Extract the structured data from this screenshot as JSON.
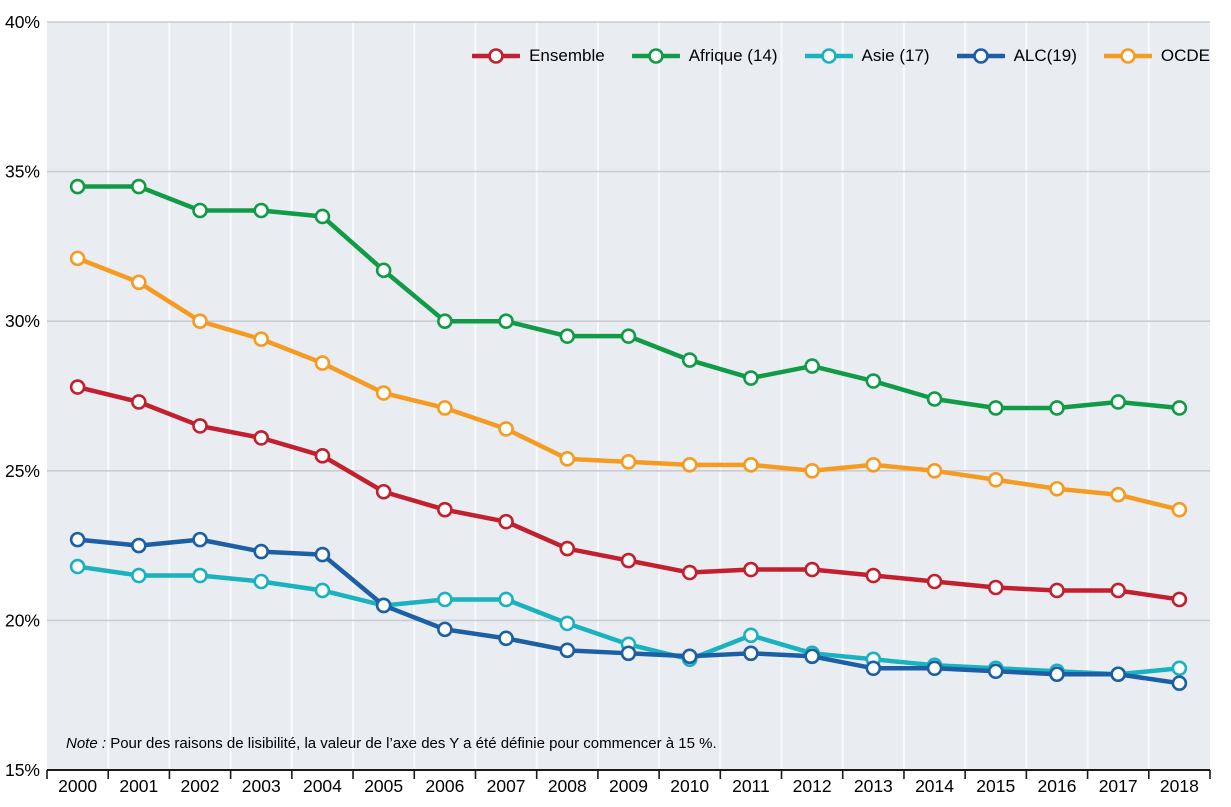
{
  "chart_data": {
    "type": "line",
    "title": "",
    "xlabel": "",
    "ylabel": "",
    "background_color": "#e9edf2",
    "grid_color": "#c9cdd1",
    "vertical_grid_color": "#f8fafb",
    "axis_color": "#1a1a1a",
    "text_color": "#000000",
    "ylim": [
      15,
      40
    ],
    "y_ticks": [
      {
        "value": 15,
        "label": "15%"
      },
      {
        "value": 20,
        "label": "20%"
      },
      {
        "value": 25,
        "label": "25%"
      },
      {
        "value": 30,
        "label": "30%"
      },
      {
        "value": 35,
        "label": "35%"
      },
      {
        "value": 40,
        "label": "40%"
      }
    ],
    "x": [
      2000,
      2001,
      2002,
      2003,
      2004,
      2005,
      2006,
      2007,
      2008,
      2009,
      2010,
      2011,
      2012,
      2013,
      2014,
      2015,
      2016,
      2017,
      2018
    ],
    "series": [
      {
        "name": "Ensemble",
        "color": "#c2202f",
        "values": [
          27.8,
          27.3,
          26.5,
          26.1,
          25.5,
          24.3,
          23.7,
          23.3,
          22.4,
          22.0,
          21.6,
          21.7,
          21.7,
          21.5,
          21.3,
          21.1,
          21.0,
          21.0,
          20.7
        ]
      },
      {
        "name": "Afrique (14)",
        "color": "#119b46",
        "values": [
          34.5,
          34.5,
          33.7,
          33.7,
          33.5,
          31.7,
          30.0,
          30.0,
          29.5,
          29.5,
          28.7,
          28.1,
          28.5,
          28.0,
          27.4,
          27.1,
          27.1,
          27.3,
          27.1
        ]
      },
      {
        "name": "Asie (17)",
        "color": "#1ab2be",
        "values": [
          21.8,
          21.5,
          21.5,
          21.3,
          21.0,
          20.5,
          20.7,
          20.7,
          19.9,
          19.2,
          18.7,
          19.5,
          18.9,
          18.7,
          18.5,
          18.4,
          18.3,
          18.2,
          18.4
        ]
      },
      {
        "name": "ALC(19)",
        "color": "#1c5fa5",
        "values": [
          22.7,
          22.5,
          22.7,
          22.3,
          22.2,
          20.5,
          19.7,
          19.4,
          19.0,
          18.9,
          18.8,
          18.9,
          18.8,
          18.4,
          18.4,
          18.3,
          18.2,
          18.2,
          17.9
        ]
      },
      {
        "name": "OCDE",
        "color": "#f59b22",
        "values": [
          32.1,
          31.3,
          30.0,
          29.4,
          28.6,
          27.6,
          27.1,
          26.4,
          25.4,
          25.3,
          25.2,
          25.2,
          25.0,
          25.2,
          25.0,
          24.7,
          24.4,
          24.2,
          23.7
        ]
      }
    ],
    "legend_position": "top-right",
    "grid": "on",
    "note_label": "Note :",
    "note_text": " Pour des raisons de lisibilité, la valeur de l’axe des Y a été définie pour commencer à 15 %."
  }
}
